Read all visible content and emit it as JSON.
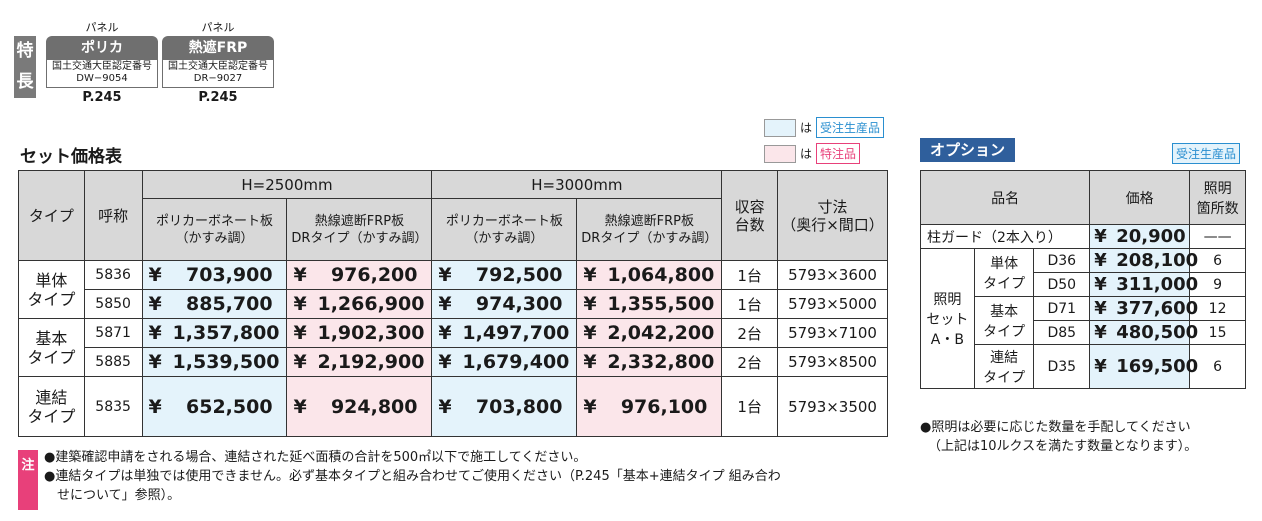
{
  "features": {
    "side_label": [
      "特",
      "長"
    ],
    "badges": [
      {
        "caption": "パネル",
        "name": "ポリカ",
        "cert1": "国土交通大臣認定番号",
        "cert2": "DW−9054",
        "page": "P.245"
      },
      {
        "caption": "パネル",
        "name": "熱遮FRP",
        "cert1": "国土交通大臣認定番号",
        "cert2": "DR−9027",
        "page": "P.245"
      }
    ]
  },
  "legend": {
    "blue_text": "は",
    "blue_tag": "受注生産品",
    "pink_text": "は",
    "pink_tag": "特注品"
  },
  "price_table": {
    "title": "セット価格表",
    "headers": {
      "type": "タイプ",
      "code": "呼称",
      "h2500": "H=2500mm",
      "h3000": "H=3000mm",
      "poly1": "ポリカーボネート板",
      "poly2": "（かすみ調）",
      "frp1": "熱線遮断FRP板",
      "frp2": "DRタイプ（かすみ調）",
      "qty1": "収容",
      "qty2": "台数",
      "dim1": "寸法",
      "dim2": "（奥行×間口）"
    },
    "groups": [
      {
        "type1": "単体",
        "type2": "タイプ",
        "rows": [
          {
            "code": "5836",
            "p1": "703,900",
            "p2": "976,200",
            "p3": "792,500",
            "p4": "1,064,800",
            "qty": "1台",
            "dim": "5793×3600"
          },
          {
            "code": "5850",
            "p1": "885,700",
            "p2": "1,266,900",
            "p3": "974,300",
            "p4": "1,355,500",
            "qty": "1台",
            "dim": "5793×5000"
          }
        ]
      },
      {
        "type1": "基本",
        "type2": "タイプ",
        "rows": [
          {
            "code": "5871",
            "p1": "1,357,800",
            "p2": "1,902,300",
            "p3": "1,497,700",
            "p4": "2,042,200",
            "qty": "2台",
            "dim": "5793×7100"
          },
          {
            "code": "5885",
            "p1": "1,539,500",
            "p2": "2,192,900",
            "p3": "1,679,400",
            "p4": "2,332,800",
            "qty": "2台",
            "dim": "5793×8500"
          }
        ]
      },
      {
        "type1": "連結",
        "type2": "タイプ",
        "rows": [
          {
            "code": "5835",
            "p1": "652,500",
            "p2": "924,800",
            "p3": "703,800",
            "p4": "976,100",
            "qty": "1台",
            "dim": "5793×3500"
          }
        ]
      }
    ],
    "yen": "¥"
  },
  "notes": {
    "tag": "注",
    "lines": [
      "●建築確認申請をされる場合、連結された延べ面積の合計を500㎡以下で施工してください。",
      "●連結タイプは単独では使用できません。必ず基本タイプと組み合わせてご使用ください（P.245「基本+連結タイプ 組み合わ",
      "　せについて」参照）。"
    ]
  },
  "option": {
    "title": "オプション",
    "tag": "受注生産品",
    "headers": {
      "name": "品名",
      "price": "価格",
      "light1": "照明",
      "light2": "箇所数"
    },
    "guard": {
      "name": "柱ガード（2本入り）",
      "price": "20,900",
      "count": "——"
    },
    "light_label": [
      "照明",
      "セット",
      "A・B"
    ],
    "light_groups": [
      {
        "t1": "単体",
        "t2": "タイプ",
        "rows": [
          {
            "code": "D36",
            "price": "208,100",
            "count": "6"
          },
          {
            "code": "D50",
            "price": "311,000",
            "count": "9"
          }
        ]
      },
      {
        "t1": "基本",
        "t2": "タイプ",
        "rows": [
          {
            "code": "D71",
            "price": "377,600",
            "count": "12"
          },
          {
            "code": "D85",
            "price": "480,500",
            "count": "15"
          }
        ]
      },
      {
        "t1": "連結",
        "t2": "タイプ",
        "rows": [
          {
            "code": "D35",
            "price": "169,500",
            "count": "6"
          }
        ]
      }
    ],
    "notes": [
      "●照明は必要に応じた数量を手配してください",
      "（上記は10ルクスを満たす数量となります）。"
    ]
  }
}
